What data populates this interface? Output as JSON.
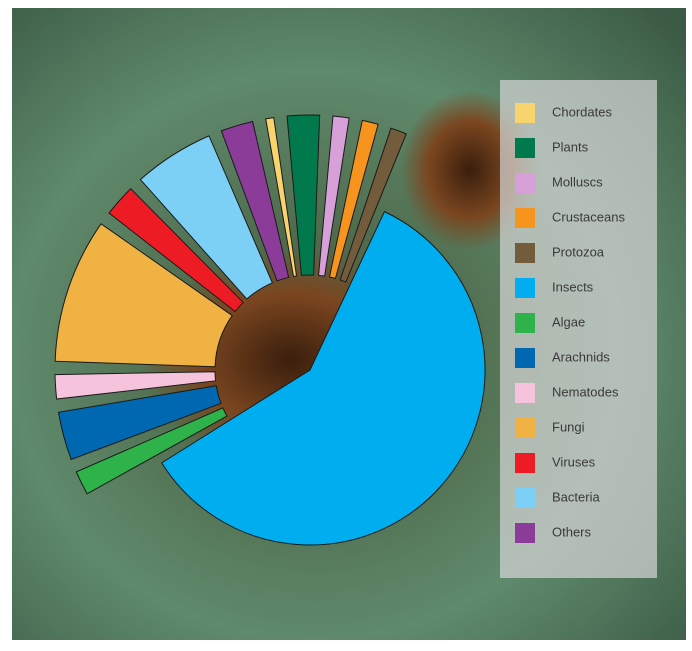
{
  "chart_data": {
    "type": "pie",
    "categories": [
      "Chordates",
      "Plants",
      "Molluscs",
      "Crustaceans",
      "Protozoa",
      "Insects",
      "Algae",
      "Arachnids",
      "Nematodes",
      "Fungi",
      "Viruses",
      "Bacteria",
      "Others"
    ],
    "values": [
      0.5,
      2,
      1,
      1,
      1,
      58,
      1.5,
      3,
      1.5,
      9,
      2,
      5,
      2
    ],
    "colors": [
      "#f9d36b",
      "#007a4d",
      "#d7a0d8",
      "#f7941d",
      "#735c3b",
      "#00aeef",
      "#2db34a",
      "#0067b1",
      "#f6c3dc",
      "#f0b343",
      "#ed1c24",
      "#7dd0f5",
      "#8b3c98"
    ],
    "legend": "right"
  }
}
